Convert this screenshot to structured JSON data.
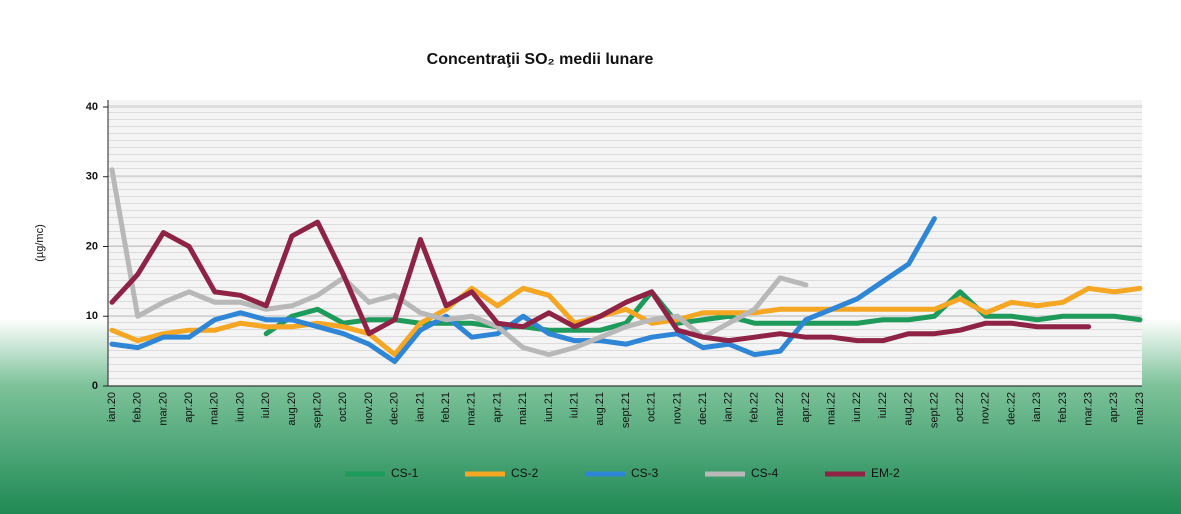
{
  "chart_data": {
    "type": "line",
    "title": "Concentraţii SO₂ medii lunare",
    "y_label": "(µg/mc)",
    "categories": [
      "ian.20",
      "feb.20",
      "mar.20",
      "apr.20",
      "mai.20",
      "iun.20",
      "iul.20",
      "aug.20",
      "sept.20",
      "oct.20",
      "nov.20",
      "dec.20",
      "ian.21",
      "feb.21",
      "mar.21",
      "apr.21",
      "mai.21",
      "iun.21",
      "iul.21",
      "aug.21",
      "sept.21",
      "oct.21",
      "nov.21",
      "dec.21",
      "ian.22",
      "feb.22",
      "mar.22",
      "apr.22",
      "mai.22",
      "iun.22",
      "iul.22",
      "aug.22",
      "sept.22",
      "oct.22",
      "nov.22",
      "dec.22",
      "ian.23",
      "feb.23",
      "mar.23",
      "apr.23",
      "mai.23"
    ],
    "series": [
      {
        "name": "CS-1",
        "color": "#1e9a5a",
        "values": [
          null,
          null,
          null,
          null,
          null,
          null,
          7.5,
          10,
          11,
          9,
          9.5,
          9.5,
          9,
          9,
          9,
          8.5,
          8.5,
          8,
          8,
          8,
          9,
          13.5,
          9,
          9.5,
          10,
          9,
          9,
          9,
          9,
          9,
          9.5,
          9.5,
          10,
          13.5,
          10,
          10,
          9.5,
          10,
          10,
          10,
          9.5
        ]
      },
      {
        "name": "CS-2",
        "color": "#f5a623",
        "values": [
          8,
          6.5,
          7.5,
          8,
          8,
          9,
          8.5,
          8.5,
          9,
          8.5,
          7.5,
          4.5,
          9,
          11,
          14,
          11.5,
          14,
          13,
          9,
          10,
          11,
          9,
          9.5,
          10.5,
          10.5,
          10.5,
          11,
          11,
          11,
          11,
          11,
          11,
          11,
          12.5,
          10.5,
          12,
          11.5,
          12,
          14,
          13.5,
          14
        ]
      },
      {
        "name": "CS-3",
        "color": "#2f86d6",
        "values": [
          6,
          5.5,
          7,
          7,
          9.5,
          10.5,
          9.5,
          9.5,
          8.5,
          7.5,
          6,
          3.5,
          8,
          10,
          7,
          7.5,
          10,
          7.5,
          6.5,
          6.5,
          6,
          7,
          7.5,
          5.5,
          6,
          4.5,
          5,
          9.5,
          11,
          12.5,
          15,
          17.5,
          24,
          null,
          null,
          null,
          null,
          null,
          null,
          null,
          null
        ]
      },
      {
        "name": "CS-4",
        "color": "#b8b8b8",
        "values": [
          31,
          10,
          12,
          13.5,
          12,
          12,
          11,
          11.5,
          13,
          15.5,
          12,
          13,
          10.5,
          9.5,
          10,
          8.5,
          5.5,
          4.5,
          5.5,
          7,
          8.5,
          9.5,
          10,
          7,
          9,
          11,
          15.5,
          14.5,
          null,
          null,
          null,
          null,
          null,
          null,
          null,
          null,
          null,
          null,
          null,
          null,
          null
        ]
      },
      {
        "name": "EM-2",
        "color": "#8e2346",
        "values": [
          12,
          16,
          22,
          20,
          13.5,
          13,
          11.5,
          21.5,
          23.5,
          16,
          7.5,
          9.5,
          21,
          11.5,
          13.5,
          9,
          8.5,
          10.5,
          8.5,
          10,
          12,
          13.5,
          8,
          7,
          6.5,
          7,
          7.5,
          7,
          7,
          6.5,
          6.5,
          7.5,
          7.5,
          8,
          9,
          9,
          8.5,
          8.5,
          8.5,
          null,
          null
        ]
      }
    ],
    "ylim": [
      0,
      40
    ],
    "yticks": [
      0,
      10,
      20,
      30,
      40
    ],
    "grid": true,
    "legend": "bottom"
  }
}
